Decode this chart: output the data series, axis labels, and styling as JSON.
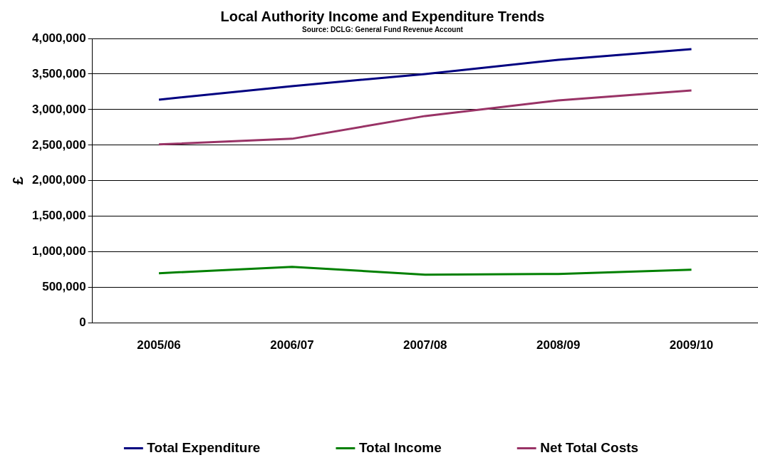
{
  "chart_data": {
    "type": "line",
    "title": "Local Authority Income and Expenditure Trends",
    "subtitle": "Source: DCLG: General Fund Revenue Account",
    "ylabel": "£",
    "categories": [
      "2005/06",
      "2006/07",
      "2007/08",
      "2008/09",
      "2009/10"
    ],
    "series": [
      {
        "name": "Total Expenditure",
        "color": "#000080",
        "values": [
          3140000,
          3330000,
          3500000,
          3700000,
          3850000
        ]
      },
      {
        "name": "Total Income",
        "color": "#008000",
        "values": [
          700000,
          790000,
          680000,
          690000,
          750000
        ]
      },
      {
        "name": "Net Total Costs",
        "color": "#993366",
        "values": [
          2510000,
          2590000,
          2910000,
          3130000,
          3270000
        ]
      }
    ],
    "ylim": [
      0,
      4000000
    ],
    "yticks": [
      0,
      {
        "value": 500000,
        "label": "500,000"
      },
      {
        "value": 1000000,
        "label": "1,000,000"
      },
      {
        "value": 1500000,
        "label": "1,500,000"
      },
      {
        "value": 2000000,
        "label": "2,000,000"
      },
      {
        "value": 2500000,
        "label": "2,500,000"
      },
      {
        "value": 3000000,
        "label": "3,000,000"
      },
      {
        "value": 3500000,
        "label": "3,500,000"
      },
      {
        "value": 4000000,
        "label": "4,000,000"
      }
    ],
    "grid": "y",
    "legend": "bottom",
    "marker": "none",
    "line_style": "solid"
  }
}
